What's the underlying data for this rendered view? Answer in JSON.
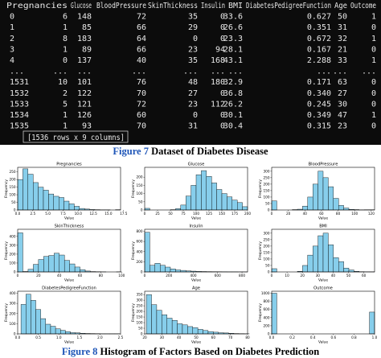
{
  "table": {
    "index_header": "",
    "columns": [
      "Pregnancies",
      "Glucose",
      "BloodPressure",
      "SkinThickness",
      "Insulin",
      "BMI",
      "DiabetesPedigreeFunction",
      "Age",
      "Outcome"
    ],
    "rows": [
      {
        "index": "0",
        "cells": [
          "6",
          "148",
          "72",
          "35",
          "0",
          "33.6",
          "0.627",
          "50",
          "1"
        ]
      },
      {
        "index": "1",
        "cells": [
          "1",
          "85",
          "66",
          "29",
          "0",
          "26.6",
          "0.351",
          "31",
          "0"
        ]
      },
      {
        "index": "2",
        "cells": [
          "8",
          "183",
          "64",
          "0",
          "0",
          "23.3",
          "0.672",
          "32",
          "1"
        ]
      },
      {
        "index": "3",
        "cells": [
          "1",
          "89",
          "66",
          "23",
          "94",
          "28.1",
          "0.167",
          "21",
          "0"
        ]
      },
      {
        "index": "4",
        "cells": [
          "0",
          "137",
          "40",
          "35",
          "168",
          "43.1",
          "2.288",
          "33",
          "1"
        ]
      },
      {
        "index": "...",
        "cells": [
          "...",
          "...",
          "...",
          "...",
          "...",
          "...",
          "...",
          "...",
          "..."
        ]
      },
      {
        "index": "1531",
        "cells": [
          "10",
          "101",
          "76",
          "48",
          "180",
          "32.9",
          "0.171",
          "63",
          "0"
        ]
      },
      {
        "index": "1532",
        "cells": [
          "2",
          "122",
          "70",
          "27",
          "0",
          "36.8",
          "0.340",
          "27",
          "0"
        ]
      },
      {
        "index": "1533",
        "cells": [
          "5",
          "121",
          "72",
          "23",
          "112",
          "26.2",
          "0.245",
          "30",
          "0"
        ]
      },
      {
        "index": "1534",
        "cells": [
          "1",
          "126",
          "60",
          "0",
          "0",
          "30.1",
          "0.349",
          "47",
          "1"
        ]
      },
      {
        "index": "1535",
        "cells": [
          "1",
          "93",
          "70",
          "31",
          "0",
          "30.4",
          "0.315",
          "23",
          "0"
        ]
      }
    ],
    "shape_label": "[1536 rows x 9 columns]"
  },
  "captions": {
    "fig7_label": "Figure 7",
    "fig7_text": " Dataset of Diabetes Disease",
    "fig8_label": "Figure 8",
    "fig8_text": " Histogram of Factors Based on Diabetes Prediction"
  },
  "colors": {
    "bar_fill": "#87ceeb",
    "bar_stroke": "#000000",
    "fig_label": "#1f56b8",
    "terminal_bg": "#0c0c0c",
    "terminal_text": "#e8e8e8"
  },
  "chart_data": [
    {
      "type": "bar",
      "title": "Pregnancies",
      "xlabel": "Value",
      "ylabel": "Frequency",
      "xlim": [
        0,
        17
      ],
      "ylim": [
        0,
        280
      ],
      "xticks": [
        "0.0",
        "2.5",
        "5.0",
        "7.5",
        "10.0",
        "12.5",
        "15.0",
        "17.5"
      ],
      "xtick_values": [
        0,
        2.5,
        5,
        7.5,
        10,
        12.5,
        15,
        17.5
      ],
      "yticks": [
        "0",
        "50",
        "100",
        "150",
        "200",
        "250"
      ],
      "ytick_values": [
        0,
        50,
        100,
        150,
        200,
        250
      ],
      "bin_start": 0,
      "bin_width": 0.85,
      "values": [
        200,
        270,
        235,
        180,
        150,
        130,
        105,
        90,
        82,
        58,
        40,
        24,
        10,
        6,
        3,
        2,
        1,
        1,
        0,
        2
      ]
    },
    {
      "type": "bar",
      "title": "Glucose",
      "xlabel": "Value",
      "ylabel": "Frequency",
      "xlim": [
        0,
        200
      ],
      "ylim": [
        0,
        260
      ],
      "xticks": [
        "0",
        "25",
        "50",
        "75",
        "100",
        "125",
        "150",
        "175",
        "200"
      ],
      "xtick_values": [
        0,
        25,
        50,
        75,
        100,
        125,
        150,
        175,
        200
      ],
      "yticks": [
        "0",
        "50",
        "100",
        "150",
        "200"
      ],
      "ytick_values": [
        0,
        50,
        100,
        150,
        200
      ],
      "bin_start": 0,
      "bin_width": 10,
      "values": [
        10,
        0,
        0,
        0,
        0,
        2,
        8,
        30,
        85,
        150,
        215,
        240,
        205,
        165,
        125,
        100,
        80,
        60,
        45,
        20
      ]
    },
    {
      "type": "bar",
      "title": "BloodPressure",
      "xlabel": "Value",
      "ylabel": "Frequency",
      "xlim": [
        0,
        124
      ],
      "ylim": [
        0,
        330
      ],
      "xticks": [
        "0",
        "20",
        "40",
        "60",
        "80",
        "100",
        "120"
      ],
      "xtick_values": [
        0,
        20,
        40,
        60,
        80,
        100,
        120
      ],
      "yticks": [
        "0",
        "50",
        "100",
        "150",
        "200",
        "250",
        "300"
      ],
      "ytick_values": [
        0,
        50,
        100,
        150,
        200,
        250,
        300
      ],
      "bin_start": 0,
      "bin_width": 6.2,
      "values": [
        70,
        0,
        0,
        0,
        3,
        6,
        30,
        100,
        200,
        300,
        250,
        180,
        90,
        35,
        15,
        5,
        3,
        1,
        2,
        2
      ]
    },
    {
      "type": "bar",
      "title": "SkinThickness",
      "xlabel": "Value",
      "ylabel": "Frequency",
      "xlim": [
        0,
        99
      ],
      "ylim": [
        0,
        480
      ],
      "xticks": [
        "0",
        "20",
        "40",
        "60",
        "80",
        "100"
      ],
      "xtick_values": [
        0,
        20,
        40,
        60,
        80,
        100
      ],
      "yticks": [
        "0",
        "100",
        "200",
        "300",
        "400"
      ],
      "ytick_values": [
        0,
        100,
        200,
        300,
        400
      ],
      "bin_start": 0,
      "bin_width": 5,
      "values": [
        440,
        5,
        30,
        85,
        140,
        175,
        185,
        210,
        190,
        130,
        90,
        55,
        25,
        10,
        4,
        2,
        1,
        0,
        0,
        1
      ]
    },
    {
      "type": "bar",
      "title": "Insulin",
      "xlabel": "Value",
      "ylabel": "Frequency",
      "xlim": [
        0,
        846
      ],
      "ylim": [
        0,
        840
      ],
      "xticks": [
        "0",
        "200",
        "400",
        "600",
        "800"
      ],
      "xtick_values": [
        0,
        200,
        400,
        600,
        800
      ],
      "yticks": [
        "0",
        "200",
        "400",
        "600",
        "800"
      ],
      "ytick_values": [
        0,
        200,
        400,
        600,
        800
      ],
      "bin_start": 0,
      "bin_width": 42.3,
      "values": [
        780,
        130,
        170,
        130,
        95,
        60,
        40,
        30,
        20,
        15,
        10,
        8,
        6,
        5,
        4,
        3,
        2,
        2,
        1,
        1
      ]
    },
    {
      "type": "bar",
      "title": "BMI",
      "xlabel": "Value",
      "ylabel": "Frequency",
      "xlim": [
        0,
        67
      ],
      "ylim": [
        0,
        330
      ],
      "xticks": [
        "0",
        "10",
        "20",
        "30",
        "40",
        "50",
        "60"
      ],
      "xtick_values": [
        0,
        10,
        20,
        30,
        40,
        50,
        60
      ],
      "yticks": [
        "0",
        "50",
        "100",
        "150",
        "200",
        "250",
        "300"
      ],
      "ytick_values": [
        0,
        50,
        100,
        150,
        200,
        250,
        300
      ],
      "bin_start": 0,
      "bin_width": 3.35,
      "values": [
        25,
        0,
        0,
        0,
        0,
        5,
        50,
        130,
        200,
        280,
        300,
        210,
        110,
        80,
        30,
        15,
        5,
        2,
        1,
        1
      ]
    },
    {
      "type": "bar",
      "title": "DiabetesPedigreeFunction",
      "xlabel": "Value",
      "ylabel": "Frequency",
      "xlim": [
        0.0,
        2.5
      ],
      "ylim": [
        0,
        420
      ],
      "xticks": [
        "0.0",
        "0.5",
        "1.0",
        "1.5",
        "2.0",
        "2.5"
      ],
      "xtick_values": [
        0,
        0.5,
        1,
        1.5,
        2,
        2.5
      ],
      "yticks": [
        "0",
        "100",
        "200",
        "300",
        "400"
      ],
      "ytick_values": [
        0,
        100,
        200,
        300,
        400
      ],
      "bin_start": 0.08,
      "bin_width": 0.12,
      "values": [
        290,
        390,
        330,
        240,
        150,
        95,
        75,
        50,
        35,
        22,
        12,
        10,
        6,
        4,
        3,
        2,
        1,
        1,
        1,
        1
      ]
    },
    {
      "type": "bar",
      "title": "Age",
      "xlabel": "Value",
      "ylabel": "Frequency",
      "xlim": [
        20,
        80
      ],
      "ylim": [
        0,
        380
      ],
      "xticks": [
        "20",
        "30",
        "40",
        "50",
        "60",
        "70",
        "80"
      ],
      "xtick_values": [
        20,
        30,
        40,
        50,
        60,
        70,
        80
      ],
      "yticks": [
        "0",
        "50",
        "100",
        "150",
        "200",
        "250",
        "300",
        "350"
      ],
      "ytick_values": [
        0,
        50,
        100,
        150,
        200,
        250,
        300,
        350
      ],
      "bin_start": 21,
      "bin_width": 3,
      "values": [
        350,
        260,
        210,
        170,
        140,
        120,
        90,
        80,
        65,
        55,
        40,
        30,
        20,
        15,
        10,
        8,
        5,
        3,
        2,
        1
      ]
    },
    {
      "type": "bar",
      "title": "Outcome",
      "xlabel": "Value",
      "ylabel": "Frequency",
      "xlim": [
        0,
        1
      ],
      "ylim": [
        0,
        1050
      ],
      "xticks": [
        "0.0",
        "0.2",
        "0.4",
        "0.6",
        "0.8",
        "1.0"
      ],
      "xtick_values": [
        0,
        0.2,
        0.4,
        0.6,
        0.8,
        1.0
      ],
      "yticks": [
        "0",
        "200",
        "400",
        "600",
        "800",
        "1000"
      ],
      "ytick_values": [
        0,
        200,
        400,
        600,
        800,
        1000
      ],
      "bin_start": 0,
      "bin_width": 0.05,
      "values": [
        1000,
        0,
        0,
        0,
        0,
        0,
        0,
        0,
        0,
        0,
        0,
        0,
        0,
        0,
        0,
        0,
        0,
        0,
        0,
        536
      ]
    }
  ]
}
